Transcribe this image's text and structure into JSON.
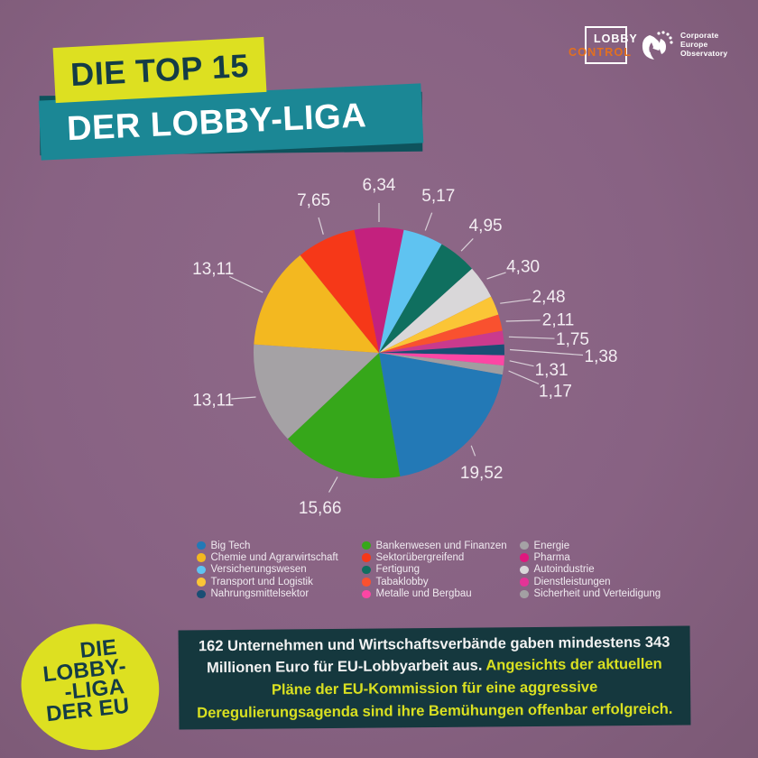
{
  "title": {
    "line1": "DIE TOP 15",
    "line2": "DER LOBBY-LIGA"
  },
  "logos": {
    "lobbycontrol": {
      "word1": "LOBBY",
      "word2": "CONTROL"
    },
    "ceo": {
      "lines": [
        "Corporate",
        "Europe",
        "Observatory"
      ]
    }
  },
  "chart_data": {
    "type": "pie",
    "title": "DIE TOP 15 DER LOBBY-LIGA",
    "values_are_percent": true,
    "clockwise": true,
    "start_angle_deg": -11.41,
    "legend_position": "bottom",
    "slices": [
      {
        "label": "Pharma",
        "value": 6.34,
        "display": "6,34",
        "color": "#c3217e"
      },
      {
        "label": "Versicherungswesen",
        "value": 5.17,
        "display": "5,17",
        "color": "#5fc3f1"
      },
      {
        "label": "Fertigung",
        "value": 4.95,
        "display": "4,95",
        "color": "#0f6f5f"
      },
      {
        "label": "Autoindustrie",
        "value": 4.3,
        "display": "4,30",
        "color": "#d9d7d9"
      },
      {
        "label": "Transport und Logistik",
        "value": 2.48,
        "display": "2,48",
        "color": "#fbc536"
      },
      {
        "label": "Tabaklobby",
        "value": 2.11,
        "display": "2,11",
        "color": "#f9512f"
      },
      {
        "label": "Dienstleistungen",
        "value": 1.75,
        "display": "1,75",
        "color": "#ca3a8d"
      },
      {
        "label": "Nahrungsmittelsektor",
        "value": 1.38,
        "display": "1,38",
        "color": "#1a4e74"
      },
      {
        "label": "Metalle und Bergbau",
        "value": 1.31,
        "display": "1,31",
        "color": "#fc46a4"
      },
      {
        "label": "Sicherheit und Verteidigung",
        "value": 1.17,
        "display": "1,17",
        "color": "#a09da0"
      },
      {
        "label": "Big Tech",
        "value": 19.52,
        "display": "19,52",
        "color": "#2379b6"
      },
      {
        "label": "Bankenwesen und Finanzen",
        "value": 15.66,
        "display": "15,66",
        "color": "#36a71a"
      },
      {
        "label": "Energie",
        "value": 13.11,
        "display": "13,11",
        "color": "#a5a2a5"
      },
      {
        "label": "Chemie und Agrarwirtschaft",
        "value": 13.11,
        "display": "13,11",
        "color": "#f3b820"
      },
      {
        "label": "Sektorübergreifend",
        "value": 7.65,
        "display": "7,65",
        "color": "#f63818"
      }
    ],
    "legend_columns": [
      [
        {
          "label": "Big Tech",
          "color": "#2379b6"
        },
        {
          "label": "Chemie und Agrarwirtschaft",
          "color": "#f3b820"
        },
        {
          "label": "Versicherungswesen",
          "color": "#5fc3f1"
        },
        {
          "label": "Transport und Logistik",
          "color": "#fbc536"
        },
        {
          "label": "Nahrungsmittelsektor",
          "color": "#1a4e74"
        }
      ],
      [
        {
          "label": "Bankenwesen und Finanzen",
          "color": "#36a71a"
        },
        {
          "label": "Sektorübergreifend",
          "color": "#f63818"
        },
        {
          "label": "Fertigung",
          "color": "#0f6f5f"
        },
        {
          "label": "Tabaklobby",
          "color": "#f9512f"
        },
        {
          "label": "Metalle und Bergbau",
          "color": "#fc46a4"
        }
      ],
      [
        {
          "label": "Energie",
          "color": "#a5a2a5"
        },
        {
          "label": "Pharma",
          "color": "#e0187e"
        },
        {
          "label": "Autoindustrie",
          "color": "#d9d7d9"
        },
        {
          "label": "Dienstleistungen",
          "color": "#e43397"
        },
        {
          "label": "Sicherheit und Verteidigung",
          "color": "#a3a0a3"
        }
      ]
    ]
  },
  "badge": {
    "lines": [
      "DIE",
      "LOBBY-",
      "-LIGA",
      "DER EU"
    ]
  },
  "footer": {
    "white_text": "162 Unternehmen und Wirtschaftsverbände gaben mindestens 343 Millionen Euro für EU-Lobbyarbeit aus. ",
    "yellow_text": "Angesichts der aktuellen Pläne der EU-Kommission für eine aggressive Deregulierungsagenda sind ihre Bemühungen offenbar erfolgreich."
  },
  "colors": {
    "background": "#886283",
    "banner_yellow": "#dde021",
    "banner_teal": "#1b8795",
    "banner_teal_shadow": "#0e525c",
    "title_dark": "#143c46",
    "footer_box": "#15383e",
    "footer_yellow": "#d9e021",
    "lobbycontrol_orange": "#e4701e"
  }
}
